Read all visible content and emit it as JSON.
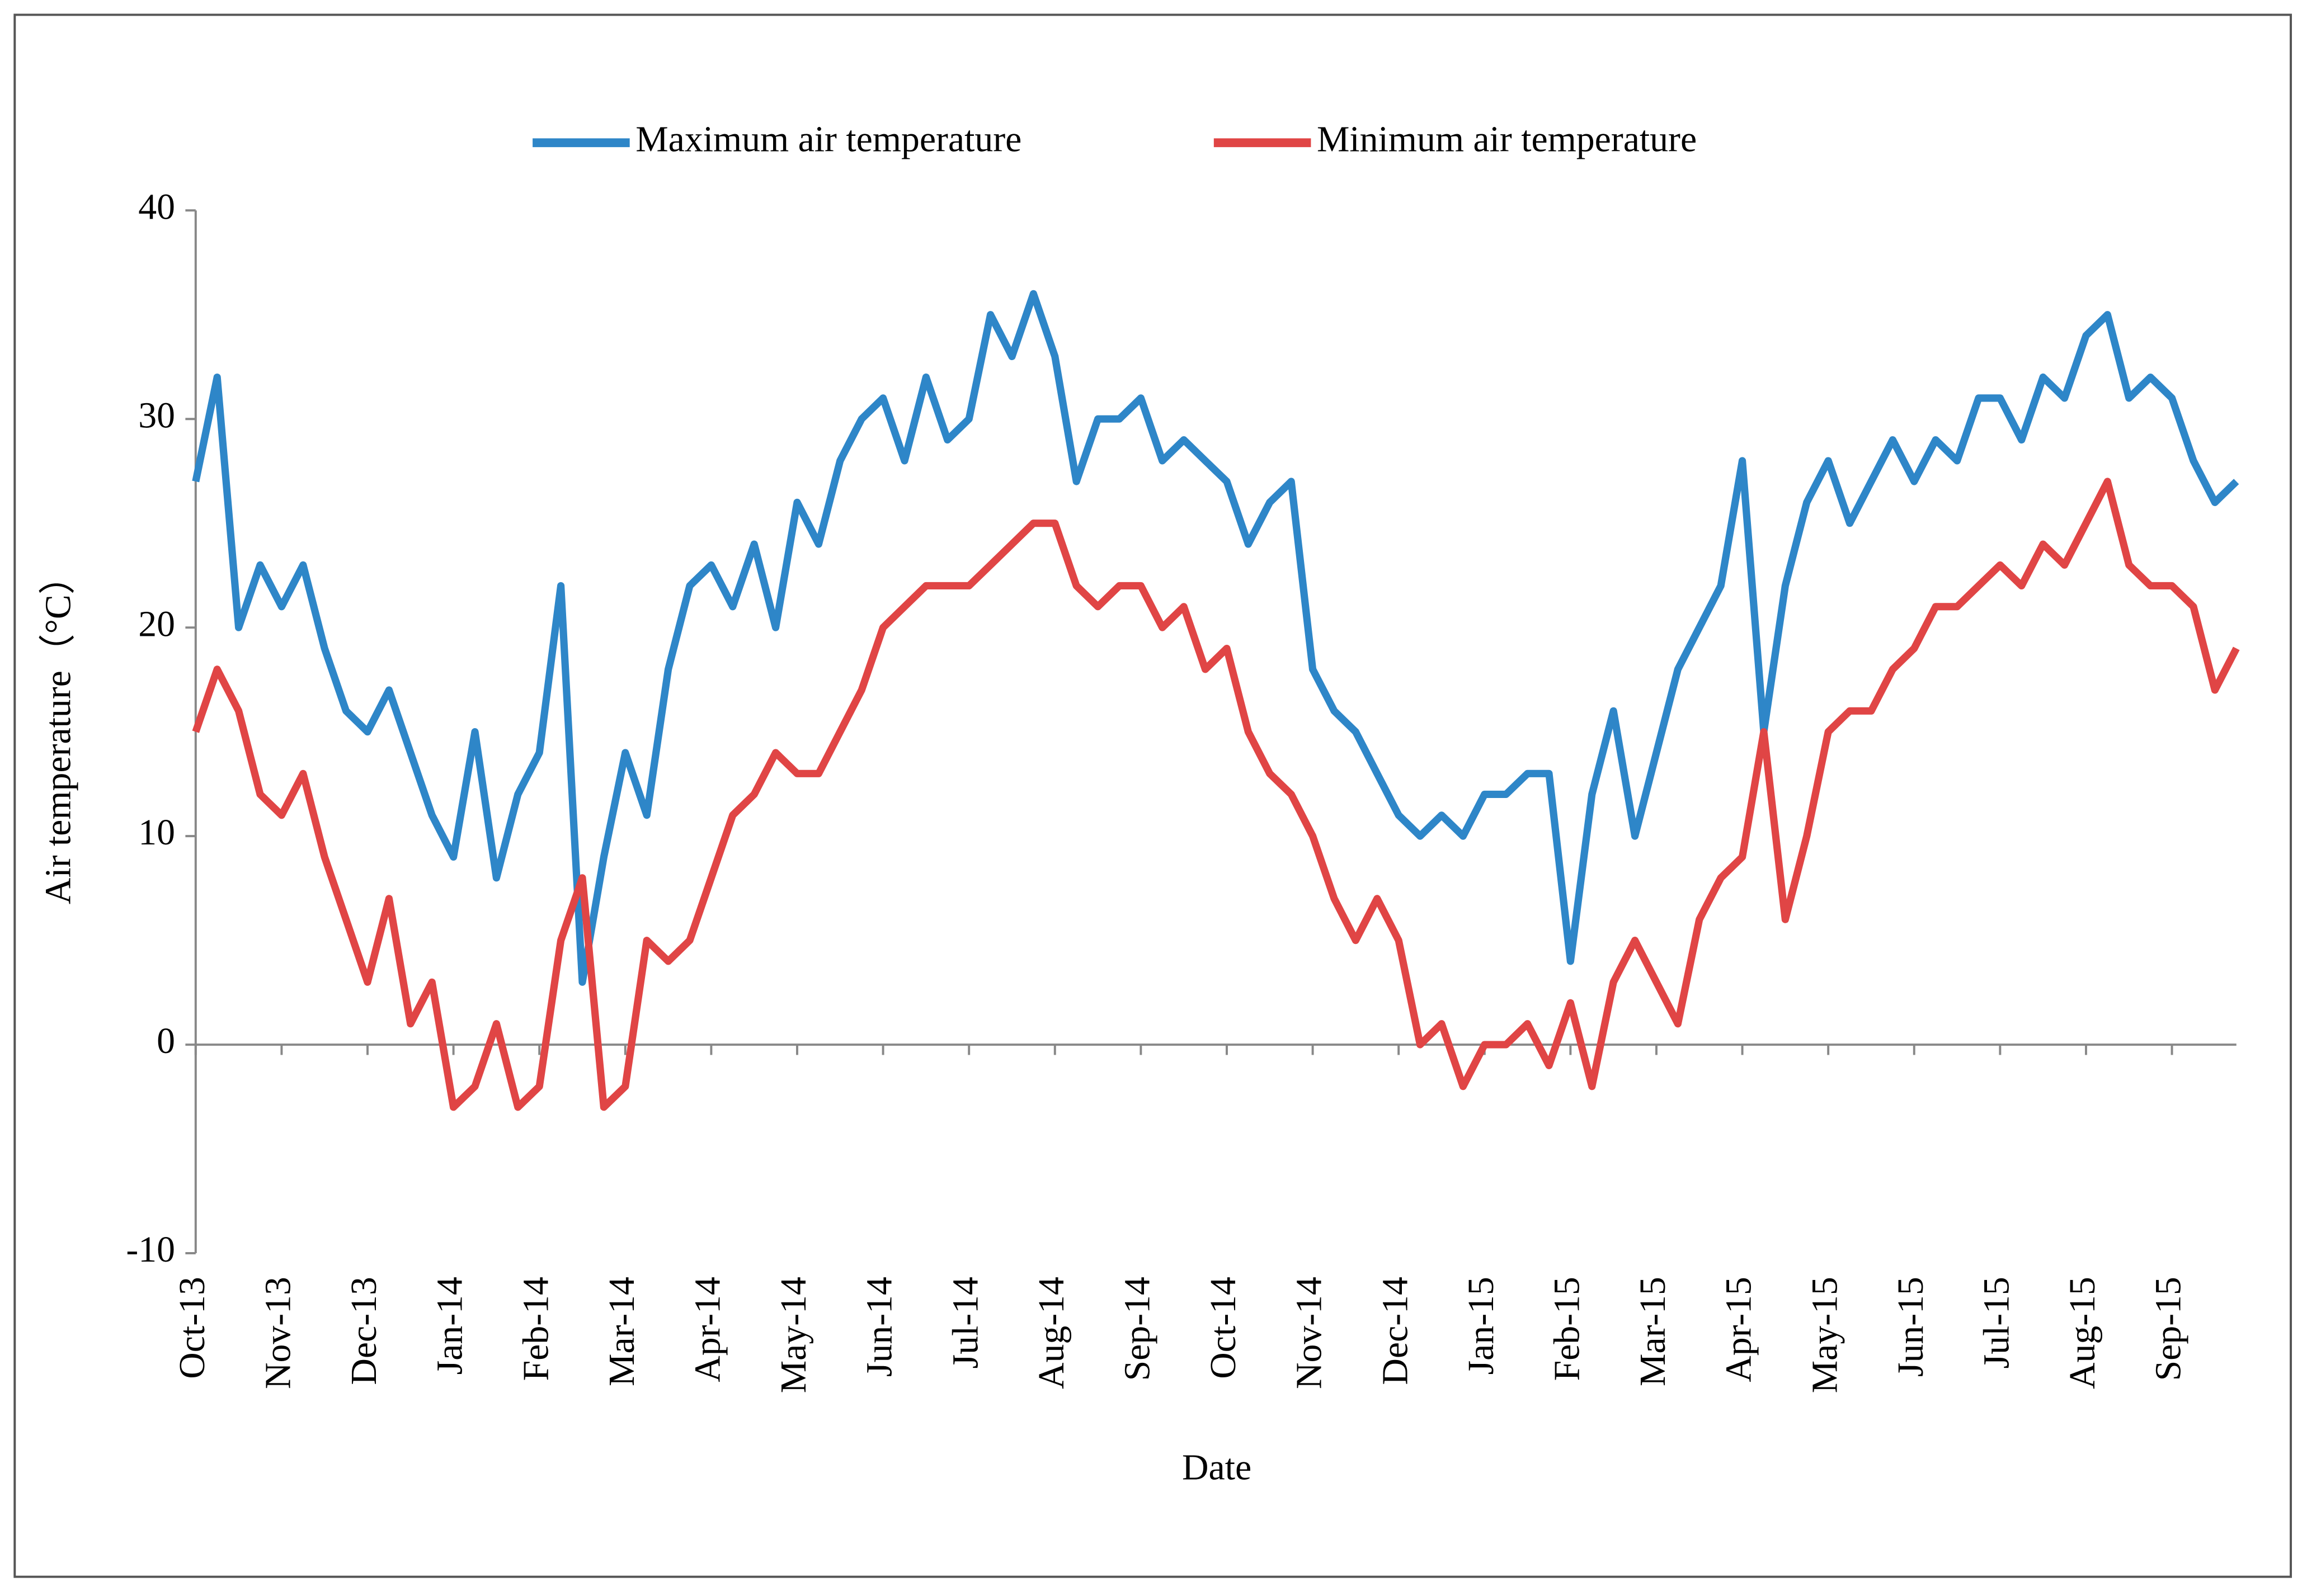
{
  "chart_data": {
    "type": "line",
    "y_label": "Air temperature（°C）",
    "x_label": "Date",
    "categories": [
      "Oct-13",
      null,
      null,
      null,
      "Nov-13",
      null,
      null,
      null,
      "Dec-13",
      null,
      null,
      null,
      "Jan-14",
      null,
      null,
      null,
      "Feb-14",
      null,
      null,
      null,
      "Mar-14",
      null,
      null,
      null,
      "Apr-14",
      null,
      null,
      null,
      "May-14",
      null,
      null,
      null,
      "Jun-14",
      null,
      null,
      null,
      "Jul-14",
      null,
      null,
      null,
      "Aug-14",
      null,
      null,
      null,
      "Sep-14",
      null,
      null,
      null,
      "Oct-14",
      null,
      null,
      null,
      "Nov-14",
      null,
      null,
      null,
      "Dec-14",
      null,
      null,
      null,
      "Jan-15",
      null,
      null,
      null,
      "Feb-15",
      null,
      null,
      null,
      "Mar-15",
      null,
      null,
      null,
      "Apr-15",
      null,
      null,
      null,
      "May-15",
      null,
      null,
      null,
      "Jun-15",
      null,
      null,
      null,
      "Jul-15",
      null,
      null,
      null,
      "Aug-15",
      null,
      null,
      null,
      "Sep-15",
      null,
      null,
      null
    ],
    "series": [
      {
        "name": "Maximum air temperature",
        "color": "#2e86c8",
        "values": [
          27,
          32,
          20,
          23,
          21,
          23,
          19,
          16,
          15,
          17,
          14,
          11,
          9,
          15,
          8,
          12,
          14,
          22,
          3,
          9,
          14,
          11,
          18,
          22,
          23,
          21,
          24,
          20,
          26,
          24,
          28,
          30,
          31,
          28,
          32,
          29,
          30,
          35,
          33,
          36,
          33,
          27,
          30,
          30,
          31,
          28,
          29,
          28,
          27,
          24,
          26,
          27,
          18,
          16,
          15,
          13,
          11,
          10,
          11,
          10,
          12,
          12,
          13,
          13,
          4,
          12,
          16,
          10,
          14,
          18,
          20,
          22,
          28,
          15,
          22,
          26,
          28,
          25,
          27,
          29,
          27,
          29,
          28,
          31,
          31,
          29,
          32,
          31,
          34,
          35,
          31,
          32,
          31,
          28,
          26,
          27
        ]
      },
      {
        "name": "Minimum air temperature",
        "color": "#e04545",
        "values": [
          15,
          18,
          16,
          12,
          11,
          13,
          9,
          6,
          3,
          7,
          1,
          3,
          -3,
          -2,
          1,
          -3,
          -2,
          5,
          8,
          -3,
          -2,
          5,
          4,
          5,
          8,
          11,
          12,
          14,
          13,
          13,
          15,
          17,
          20,
          21,
          22,
          22,
          22,
          23,
          24,
          25,
          25,
          22,
          21,
          22,
          22,
          20,
          21,
          18,
          19,
          15,
          13,
          12,
          10,
          7,
          5,
          7,
          5,
          0,
          1,
          -2,
          0,
          0,
          1,
          -1,
          2,
          -2,
          3,
          5,
          3,
          1,
          6,
          8,
          9,
          15,
          6,
          10,
          15,
          16,
          16,
          18,
          19,
          21,
          21,
          22,
          23,
          22,
          24,
          23,
          25,
          27,
          23,
          22,
          22,
          21,
          17,
          19
        ]
      }
    ],
    "ylim": [
      -10,
      40
    ],
    "yticks": [
      -10,
      0,
      10,
      20,
      30,
      40
    ]
  }
}
